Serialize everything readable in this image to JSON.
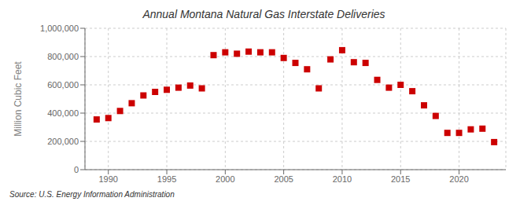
{
  "chart_data": {
    "type": "scatter",
    "title": "Annual Montana Natural Gas Interstate Deliveries",
    "ylabel": "Million Cubic Feet",
    "annotations": [
      "Source: U.S. Energy Information Administration"
    ],
    "x": [
      1989,
      1990,
      1991,
      1992,
      1993,
      1994,
      1995,
      1996,
      1997,
      1998,
      1999,
      2000,
      2001,
      2002,
      2003,
      2004,
      2005,
      2006,
      2007,
      2008,
      2009,
      2010,
      2011,
      2012,
      2013,
      2014,
      2015,
      2016,
      2017,
      2018,
      2019,
      2020,
      2021,
      2022,
      2023
    ],
    "values": [
      355000,
      365000,
      415000,
      470000,
      525000,
      550000,
      565000,
      580000,
      595000,
      575000,
      810000,
      830000,
      820000,
      835000,
      830000,
      830000,
      790000,
      755000,
      710000,
      575000,
      780000,
      845000,
      760000,
      755000,
      635000,
      580000,
      600000,
      555000,
      455000,
      380000,
      260000,
      260000,
      285000,
      290000,
      195000
    ],
    "color": "#cc0000",
    "marker": "square",
    "xlim": [
      1988,
      2024
    ],
    "xticks": [
      1990,
      1995,
      2000,
      2005,
      2010,
      2015,
      2020
    ],
    "ylim": [
      0,
      1000000
    ],
    "yticks": [
      0,
      {
        "value": 200000,
        "label": "200,000"
      },
      {
        "value": 400000,
        "label": "400,000"
      },
      {
        "value": 600000,
        "label": "600,000"
      },
      {
        "value": 800000,
        "label": "800,000"
      },
      {
        "value": 1000000,
        "label": "1,000,000"
      }
    ],
    "grid": true
  }
}
